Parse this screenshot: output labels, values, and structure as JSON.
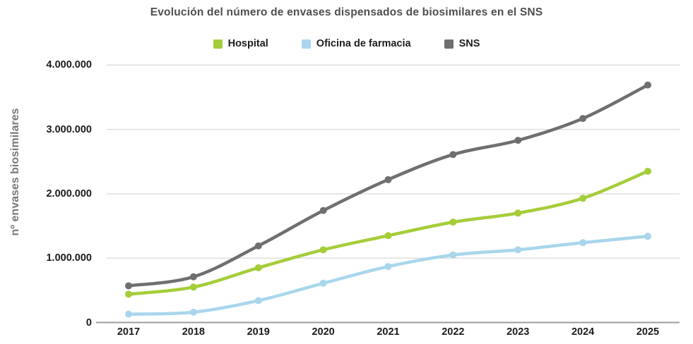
{
  "chart_data": {
    "type": "line",
    "title": "Evolución del número de envases dispensados de biosimilares en el SNS",
    "xlabel": "",
    "ylabel": "nº envases biosimilares",
    "categories": [
      "2017",
      "2018",
      "2019",
      "2020",
      "2021",
      "2022",
      "2023",
      "2024",
      "2025"
    ],
    "series": [
      {
        "name": "Hospital",
        "color": "#a5cd39",
        "values": [
          440000,
          550000,
          850000,
          1130000,
          1350000,
          1560000,
          1700000,
          1930000,
          2350000
        ]
      },
      {
        "name": "Oficina de farmacia",
        "color": "#a9d6ec",
        "values": [
          130000,
          160000,
          340000,
          610000,
          870000,
          1050000,
          1130000,
          1240000,
          1340000
        ]
      },
      {
        "name": "SNS",
        "color": "#6f6f6f",
        "values": [
          570000,
          710000,
          1190000,
          1740000,
          2220000,
          2610000,
          2830000,
          3170000,
          3690000
        ]
      }
    ],
    "ylim": [
      0,
      4000000
    ],
    "yticks": [
      {
        "value": 0,
        "label": "0"
      },
      {
        "value": 1000000,
        "label": "1.000.000"
      },
      {
        "value": 2000000,
        "label": "2.000.000"
      },
      {
        "value": 3000000,
        "label": "3.000.000"
      },
      {
        "value": 4000000,
        "label": "4.000.000"
      }
    ],
    "grid": true,
    "legend_position": "top",
    "colors": {
      "grid_line": "#dcdcdc",
      "axis_line": "#9e9e9e",
      "tick_text": "#1b1b1b",
      "title_text": "#4e4e50",
      "axis_title_text": "#77787b"
    }
  }
}
